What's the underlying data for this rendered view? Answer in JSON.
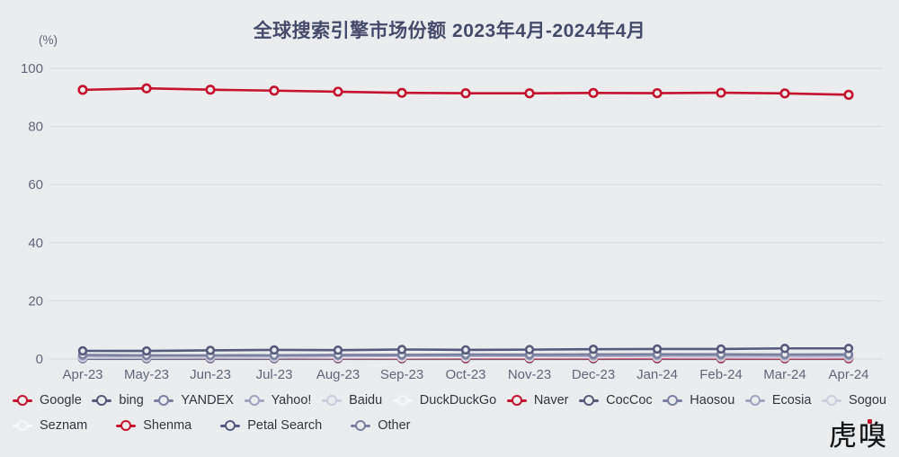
{
  "page": {
    "background": "#EBECEE",
    "watermark": "虎嗅"
  },
  "chart_data": {
    "type": "line",
    "title": "全球搜索引擎市场份额 2023年4月-2024年4月",
    "unit_label": "(%)",
    "xlabel": "",
    "ylabel": "(%)",
    "ylim": [
      0,
      100
    ],
    "y_ticks": [
      0,
      20,
      40,
      60,
      80,
      100
    ],
    "grid": true,
    "legend_position": "bottom",
    "categories": [
      "Apr-23",
      "May-23",
      "Jun-23",
      "Jul-23",
      "Aug-23",
      "Sep-23",
      "Oct-23",
      "Nov-23",
      "Dec-23",
      "Jan-24",
      "Feb-24",
      "Mar-24",
      "Apr-24"
    ],
    "colors": {
      "background": "#EBECEE",
      "gridline": "#D7D8DD",
      "axis_text": "#62667A",
      "title_text": "#444B6B",
      "legend_text": "#33363F",
      "red": "#C4122F",
      "dark_slate": "#565B7C",
      "mid_slate": "#7B80A0",
      "light_slate": "#A0A4BF",
      "pale_slate": "#CBCEDD",
      "white": "#F7F8FB"
    },
    "series": [
      {
        "name": "Google",
        "color": "#C4122F",
        "values": [
          92.61,
          93.12,
          92.66,
          92.34,
          91.97,
          91.58,
          91.44,
          91.42,
          91.54,
          91.47,
          91.62,
          91.38,
          90.91
        ]
      },
      {
        "name": "bing",
        "color": "#565B7C",
        "values": [
          2.79,
          2.77,
          2.96,
          3.1,
          3.03,
          3.25,
          3.13,
          3.21,
          3.35,
          3.43,
          3.42,
          3.64,
          3.64
        ]
      },
      {
        "name": "YANDEX",
        "color": "#7B80A0",
        "values": [
          1.39,
          1.21,
          1.23,
          1.28,
          1.39,
          1.42,
          1.52,
          1.48,
          1.58,
          1.6,
          1.62,
          1.54,
          1.58
        ]
      },
      {
        "name": "Yahoo!",
        "color": "#A0A4BF",
        "values": [
          1.1,
          1.12,
          1.16,
          1.11,
          1.12,
          1.13,
          1.15,
          1.14,
          1.1,
          1.17,
          1.2,
          1.18,
          1.25
        ]
      },
      {
        "name": "Baidu",
        "color": "#CBCEDD",
        "values": [
          0.42,
          0.46,
          0.48,
          0.45,
          0.89,
          0.98,
          1.0,
          0.95,
          0.9,
          0.85,
          0.72,
          0.68,
          0.66
        ]
      },
      {
        "name": "DuckDuckGo",
        "color": "#F7F8FB",
        "values": [
          0.52,
          0.53,
          0.54,
          0.53,
          0.52,
          0.51,
          0.55,
          0.56,
          0.57,
          0.58,
          0.56,
          0.52,
          0.54
        ]
      },
      {
        "name": "Naver",
        "color": "#C4122F",
        "values": [
          0.48,
          0.44,
          0.41,
          0.38,
          0.36,
          0.33,
          0.31,
          0.3,
          0.29,
          0.28,
          0.27,
          0.26,
          0.25
        ]
      },
      {
        "name": "CocCoc",
        "color": "#565B7C",
        "values": [
          0.18,
          0.18,
          0.17,
          0.17,
          0.16,
          0.16,
          0.15,
          0.15,
          0.14,
          0.14,
          0.13,
          0.13,
          0.12
        ]
      },
      {
        "name": "Haosou",
        "color": "#7B80A0",
        "values": [
          0.12,
          0.12,
          0.11,
          0.11,
          0.1,
          0.1,
          0.1,
          0.09,
          0.09,
          0.09,
          0.08,
          0.08,
          0.08
        ]
      },
      {
        "name": "Ecosia",
        "color": "#A0A4BF",
        "values": [
          0.1,
          0.1,
          0.1,
          0.1,
          0.1,
          0.1,
          0.1,
          0.1,
          0.1,
          0.1,
          0.1,
          0.1,
          0.11
        ]
      },
      {
        "name": "Sogou",
        "color": "#CBCEDD",
        "values": [
          0.09,
          0.08,
          0.08,
          0.07,
          0.07,
          0.06,
          0.06,
          0.06,
          0.05,
          0.05,
          0.05,
          0.05,
          0.05
        ]
      },
      {
        "name": "Seznam",
        "color": "#F7F8FB",
        "values": [
          0.05,
          0.05,
          0.05,
          0.05,
          0.05,
          0.04,
          0.04,
          0.04,
          0.04,
          0.04,
          0.04,
          0.04,
          0.04
        ]
      },
      {
        "name": "Shenma",
        "color": "#C4122F",
        "values": [
          0.62,
          0.48,
          0.35,
          0.28,
          0.22,
          0.18,
          0.15,
          0.13,
          0.12,
          0.1,
          0.09,
          0.08,
          0.08
        ]
      },
      {
        "name": "Petal Search",
        "color": "#565B7C",
        "values": [
          0.06,
          0.05,
          0.05,
          0.04,
          0.04,
          0.03,
          0.03,
          0.03,
          0.03,
          0.02,
          0.02,
          0.02,
          0.02
        ]
      },
      {
        "name": "Other",
        "color": "#7B80A0",
        "values": [
          0.12,
          0.11,
          0.11,
          0.1,
          0.1,
          0.1,
          0.09,
          0.09,
          0.09,
          0.08,
          0.08,
          0.08,
          0.08
        ]
      }
    ],
    "legend_rows": [
      [
        0,
        1,
        2,
        3,
        4,
        5,
        6,
        7,
        8,
        9,
        10
      ],
      [
        11,
        12,
        13,
        14
      ]
    ]
  }
}
